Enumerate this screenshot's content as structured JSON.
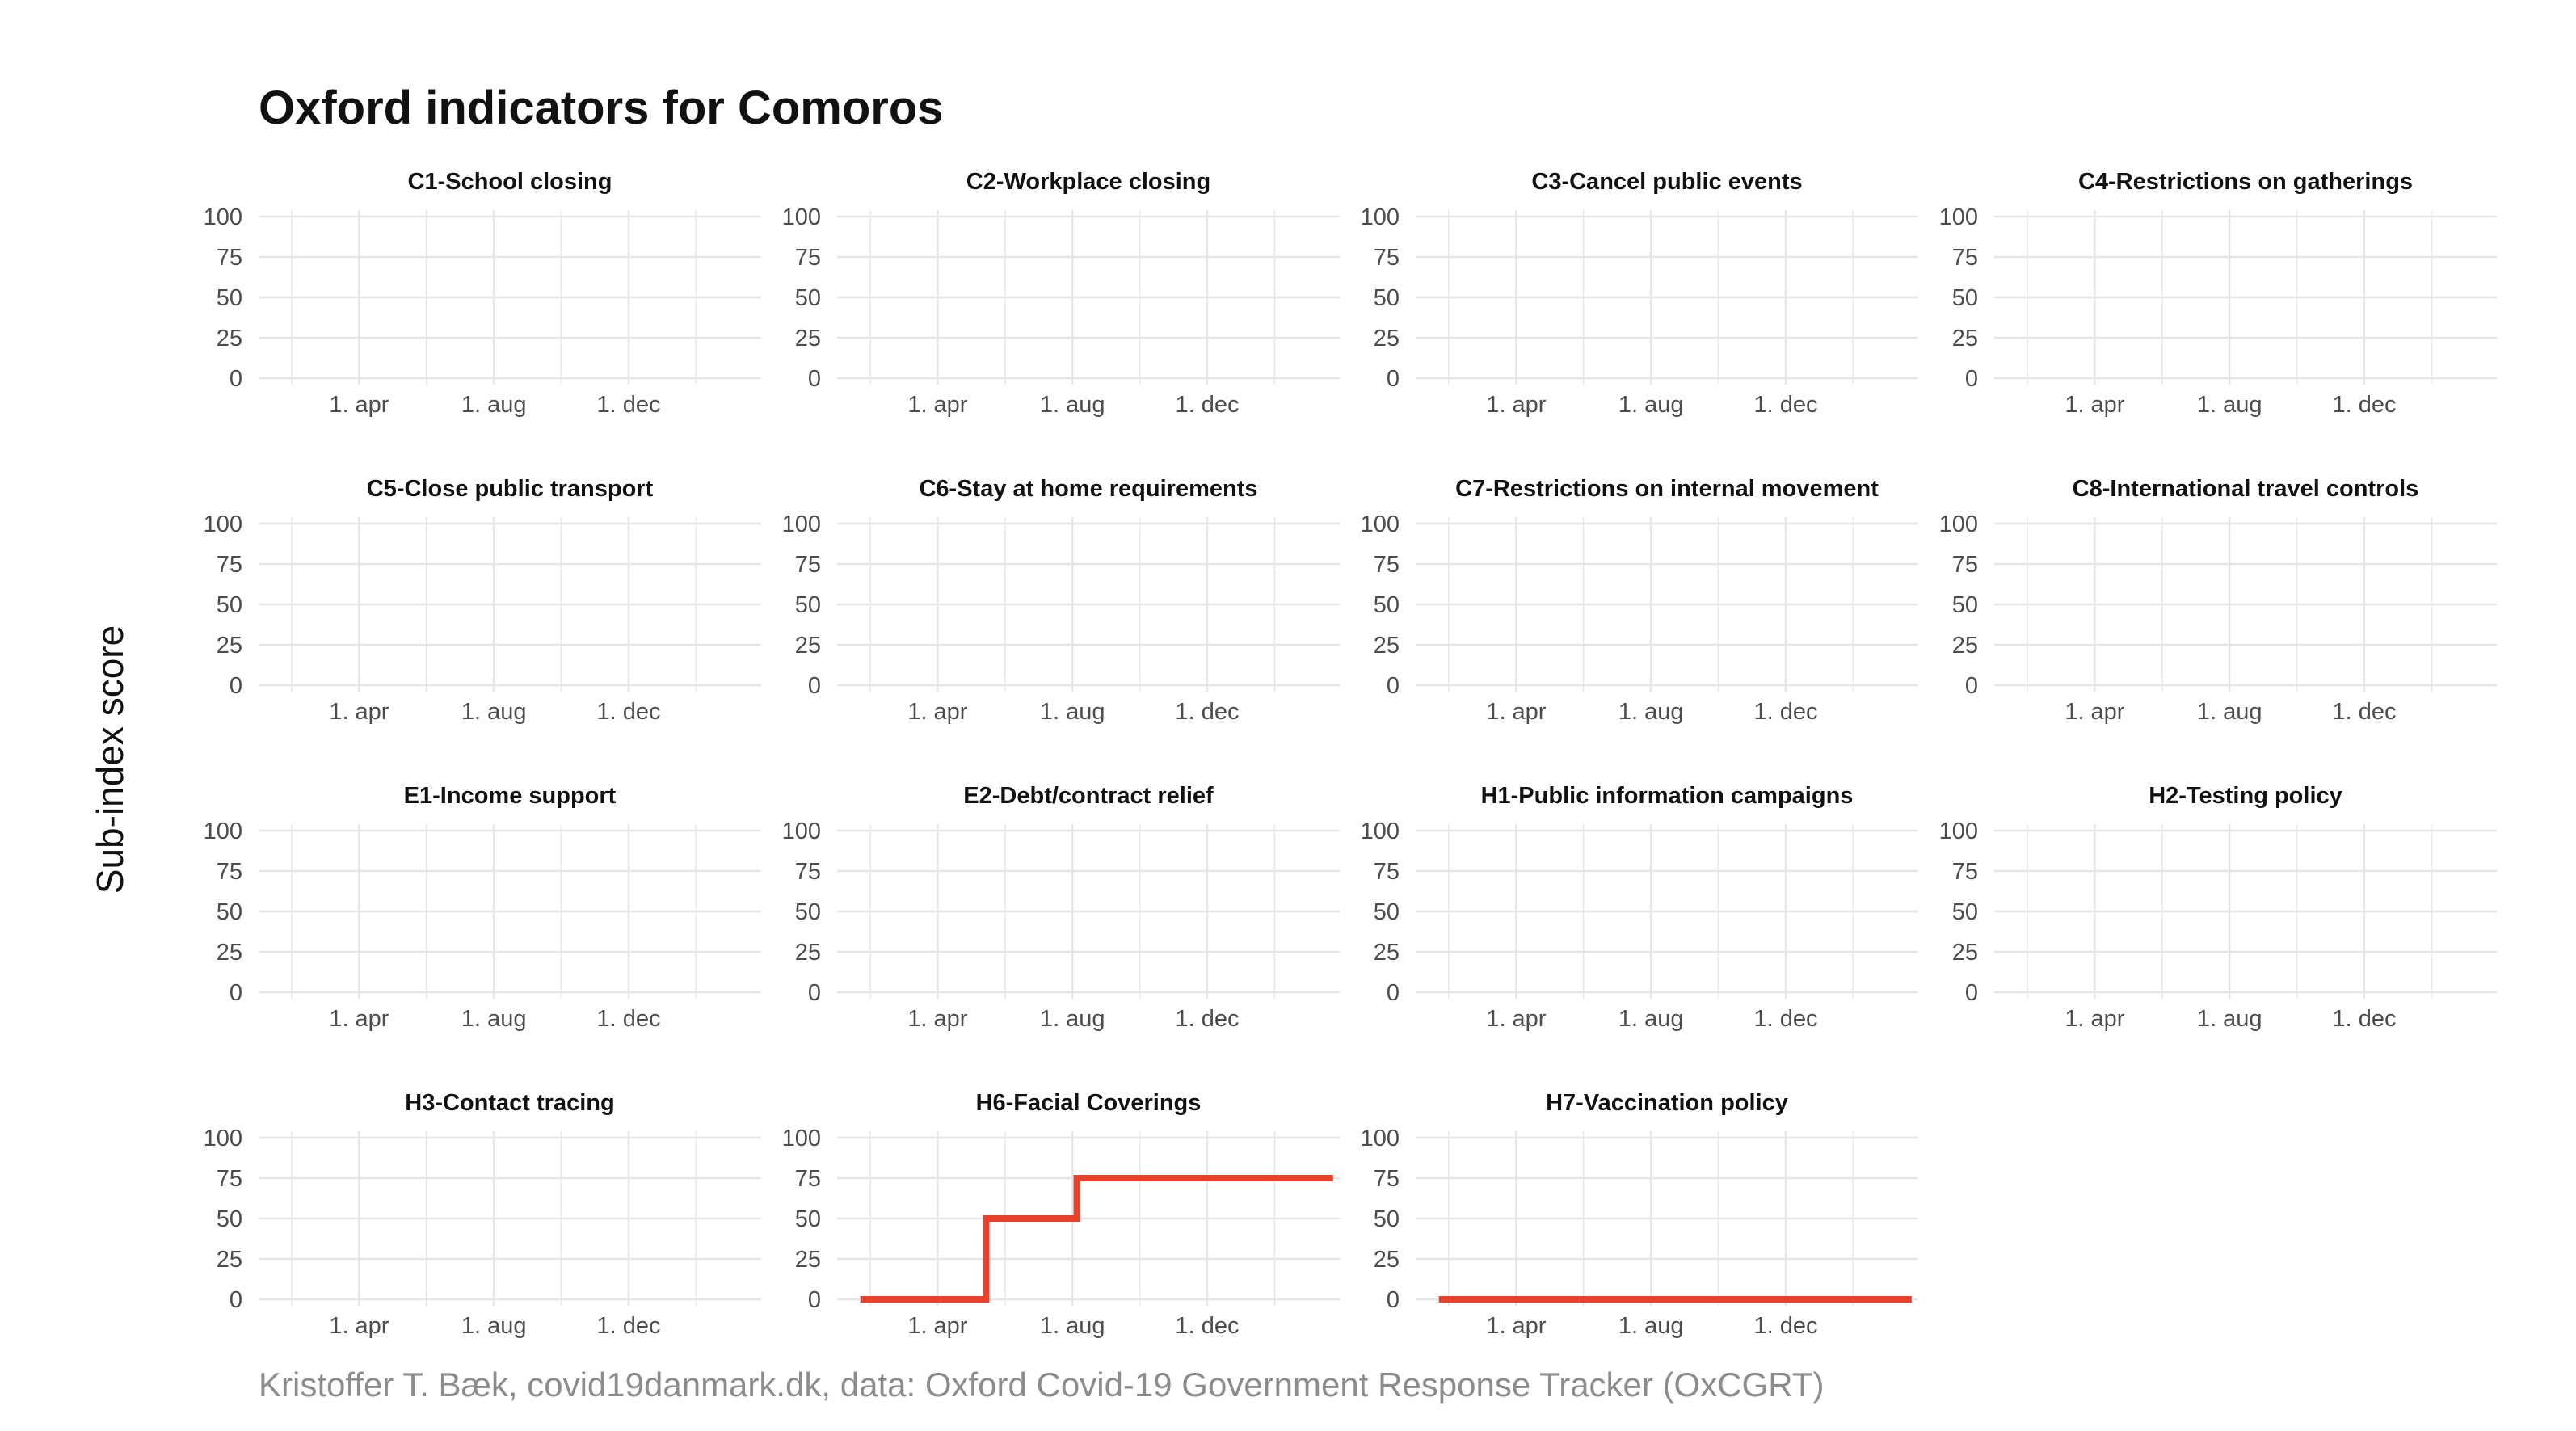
{
  "title": "Oxford indicators for Comoros",
  "ylabel": "Sub-index score",
  "caption": "Kristoffer T. Bæk, covid19danmark.dk, data: Oxford Covid-19 Government Response Tracker (OxCGRT)",
  "colors": {
    "line": "#e8412c",
    "grid": "#e6e6e6",
    "tick_text": "#4d4d4d"
  },
  "chart_data": {
    "type": "line",
    "facets": true,
    "ylim": [
      0,
      100
    ],
    "yticks": [
      0,
      25,
      50,
      75,
      100
    ],
    "xticks": [
      {
        "x": "2020-04-01",
        "label": "1. apr"
      },
      {
        "x": "2020-08-01",
        "label": "1. aug"
      },
      {
        "x": "2020-12-01",
        "label": "1. dec"
      }
    ],
    "xlim": [
      "2020-01-01",
      "2021-03-31"
    ],
    "grid": true,
    "panels": [
      {
        "title": "C1-School closing",
        "series": []
      },
      {
        "title": "C2-Workplace closing",
        "series": []
      },
      {
        "title": "C3-Cancel public events",
        "series": []
      },
      {
        "title": "C4-Restrictions on gatherings",
        "series": []
      },
      {
        "title": "C5-Close public transport",
        "series": []
      },
      {
        "title": "C6-Stay at home requirements",
        "series": []
      },
      {
        "title": "C7-Restrictions on internal movement",
        "series": []
      },
      {
        "title": "C8-International travel controls",
        "series": []
      },
      {
        "title": "E1-Income support",
        "series": []
      },
      {
        "title": "E2-Debt/contract relief",
        "series": []
      },
      {
        "title": "H1-Public information campaigns",
        "series": []
      },
      {
        "title": "H2-Testing policy",
        "series": []
      },
      {
        "title": "H3-Contact tracing",
        "series": []
      },
      {
        "title": "H6-Facial Coverings",
        "series": [
          {
            "step": true,
            "points": [
              {
                "x": "2020-01-22",
                "y": 0
              },
              {
                "x": "2020-05-15",
                "y": 0
              },
              {
                "x": "2020-05-15",
                "y": 50
              },
              {
                "x": "2020-08-05",
                "y": 50
              },
              {
                "x": "2020-08-05",
                "y": 75
              },
              {
                "x": "2021-03-25",
                "y": 75
              }
            ]
          }
        ]
      },
      {
        "title": "H7-Vaccination policy",
        "series": [
          {
            "step": true,
            "points": [
              {
                "x": "2020-01-22",
                "y": 0
              },
              {
                "x": "2021-03-25",
                "y": 0
              }
            ]
          }
        ]
      }
    ]
  }
}
